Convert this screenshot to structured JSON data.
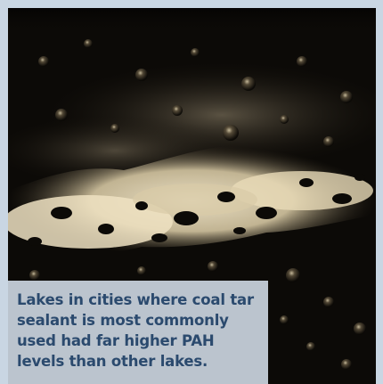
{
  "photo": {
    "subject": "wet-coal-tar-sealant-surface-icon",
    "colors": {
      "frame": "#c9d6e3",
      "dark": "#0c0a07",
      "highlight": "#efe2c2",
      "caption_bg": "#c9d3de",
      "caption_text": "#2b4a6e"
    }
  },
  "caption": {
    "text": "Lakes in cities where coal tar sealant is most commonly used had far higher PAH levels than other lakes."
  }
}
